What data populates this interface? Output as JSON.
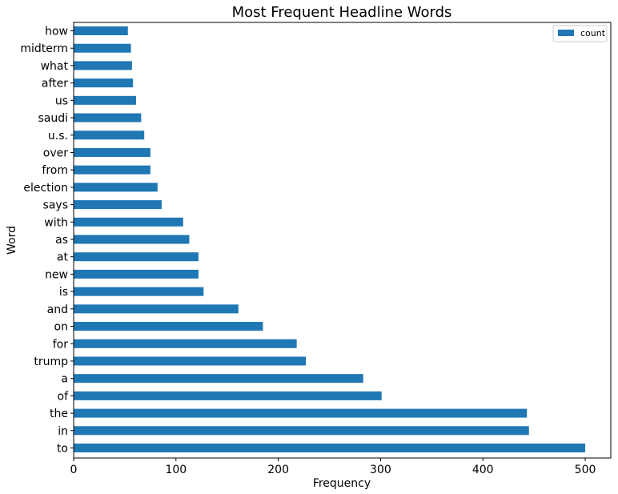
{
  "chart_data": {
    "type": "bar",
    "orientation": "horizontal",
    "title": "Most Frequent Headline Words",
    "xlabel": "Frequency",
    "ylabel": "Word",
    "xlim": [
      0,
      525
    ],
    "xticks": [
      0,
      100,
      200,
      300,
      400,
      500
    ],
    "grid": false,
    "legend_position": "top-right",
    "color": "#1f77b4",
    "categories": [
      "to",
      "in",
      "the",
      "of",
      "a",
      "trump",
      "for",
      "on",
      "and",
      "is",
      "new",
      "at",
      "as",
      "with",
      "says",
      "election",
      "from",
      "over",
      "u.s.",
      "saudi",
      "us",
      "after",
      "what",
      "midterm",
      "how"
    ],
    "series": [
      {
        "name": "count",
        "values": [
          500,
          445,
          443,
          301,
          283,
          227,
          218,
          185,
          161,
          127,
          122,
          122,
          113,
          107,
          86,
          82,
          75,
          75,
          69,
          66,
          61,
          58,
          57,
          56,
          53
        ]
      }
    ]
  }
}
